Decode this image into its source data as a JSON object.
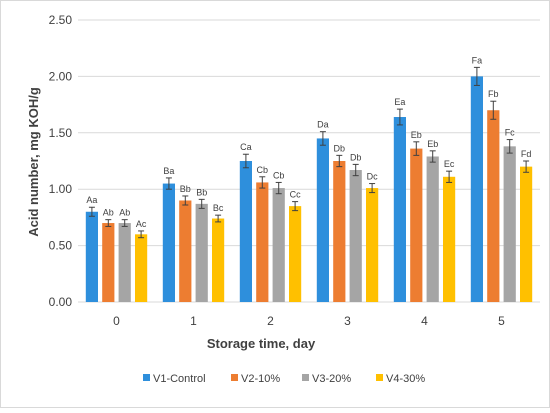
{
  "chart_data": {
    "type": "bar",
    "xlabel": "Storage time, day",
    "ylabel": "Acid number, mg KOH/g",
    "ylim": [
      0,
      2.5
    ],
    "yticks": [
      "0.00",
      "0.50",
      "1.00",
      "1.50",
      "2.00",
      "2.50"
    ],
    "grid": true,
    "legend_position": "bottom",
    "categories": [
      "0",
      "1",
      "2",
      "3",
      "4",
      "5"
    ],
    "series": [
      {
        "name": "V1-Control",
        "color": "#2e8fdc",
        "values": [
          0.8,
          1.05,
          1.25,
          1.45,
          1.64,
          2.0
        ],
        "errors": [
          0.04,
          0.05,
          0.06,
          0.06,
          0.07,
          0.08
        ],
        "labels": [
          "Aa",
          "Ba",
          "Ca",
          "Da",
          "Ea",
          "Fa"
        ]
      },
      {
        "name": "V2-10%",
        "color": "#ed7d31",
        "values": [
          0.7,
          0.9,
          1.06,
          1.25,
          1.36,
          1.7
        ],
        "errors": [
          0.03,
          0.04,
          0.05,
          0.05,
          0.06,
          0.08
        ],
        "labels": [
          "Ab",
          "Bb",
          "Cb",
          "Db",
          "Eb",
          "Fb"
        ]
      },
      {
        "name": "V3-20%",
        "color": "#a5a5a5",
        "values": [
          0.7,
          0.87,
          1.01,
          1.17,
          1.29,
          1.38
        ],
        "errors": [
          0.03,
          0.04,
          0.05,
          0.05,
          0.05,
          0.06
        ],
        "labels": [
          "Ab",
          "Bb",
          "Cb",
          "Db",
          "Eb",
          "Fc"
        ]
      },
      {
        "name": "V4-30%",
        "color": "#ffc000",
        "values": [
          0.6,
          0.74,
          0.85,
          1.01,
          1.11,
          1.2
        ],
        "errors": [
          0.03,
          0.03,
          0.04,
          0.04,
          0.05,
          0.05
        ],
        "labels": [
          "Ac",
          "Bc",
          "Cc",
          "Dc",
          "Ec",
          "Fd"
        ]
      }
    ]
  }
}
